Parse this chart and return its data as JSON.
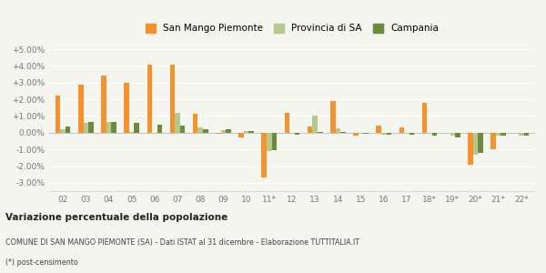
{
  "categories": [
    "02",
    "03",
    "04",
    "05",
    "06",
    "07",
    "08",
    "09",
    "10",
    "11*",
    "12",
    "13",
    "14",
    "15",
    "16",
    "17",
    "18*",
    "19*",
    "20*",
    "21*",
    "22*"
  ],
  "san_mango": [
    2.2,
    2.9,
    3.4,
    3.0,
    4.1,
    4.1,
    1.15,
    -0.05,
    -0.3,
    -2.7,
    1.2,
    0.35,
    1.9,
    -0.2,
    0.45,
    0.3,
    1.8,
    0.0,
    -1.9,
    -1.0,
    0.0
  ],
  "provincia": [
    0.2,
    0.6,
    0.65,
    0.05,
    -0.05,
    1.2,
    0.3,
    0.15,
    0.1,
    -1.1,
    -0.05,
    1.05,
    0.25,
    0.0,
    -0.1,
    -0.05,
    -0.05,
    -0.2,
    -1.3,
    -0.15,
    -0.15
  ],
  "campania": [
    0.35,
    0.65,
    0.65,
    0.6,
    0.5,
    0.4,
    0.2,
    0.2,
    0.1,
    -1.05,
    -0.1,
    0.05,
    0.05,
    -0.05,
    -0.1,
    -0.1,
    -0.15,
    -0.3,
    -1.2,
    -0.2,
    -0.2
  ],
  "color_san_mango": "#f5922e",
  "color_provincia": "#b5c98e",
  "color_campania": "#6e8b3d",
  "ylim": [
    -3.5,
    5.5
  ],
  "yticks": [
    -3.0,
    -2.0,
    -1.0,
    0.0,
    1.0,
    2.0,
    3.0,
    4.0,
    5.0
  ],
  "ytick_labels": [
    "-3.00%",
    "-2.00%",
    "-1.00%",
    "0.00%",
    "+1.00%",
    "+2.00%",
    "+3.00%",
    "+4.00%",
    "+5.00%"
  ],
  "title": "Variazione percentuale della popolazione",
  "subtitle": "COMUNE DI SAN MANGO PIEMONTE (SA) - Dati ISTAT al 31 dicembre - Elaborazione TUTTITALIA.IT",
  "footnote": "(*) post-censimento",
  "legend_labels": [
    "San Mango Piemonte",
    "Provincia di SA",
    "Campania"
  ],
  "background_color": "#f5f5ef",
  "bar_width": 0.22
}
